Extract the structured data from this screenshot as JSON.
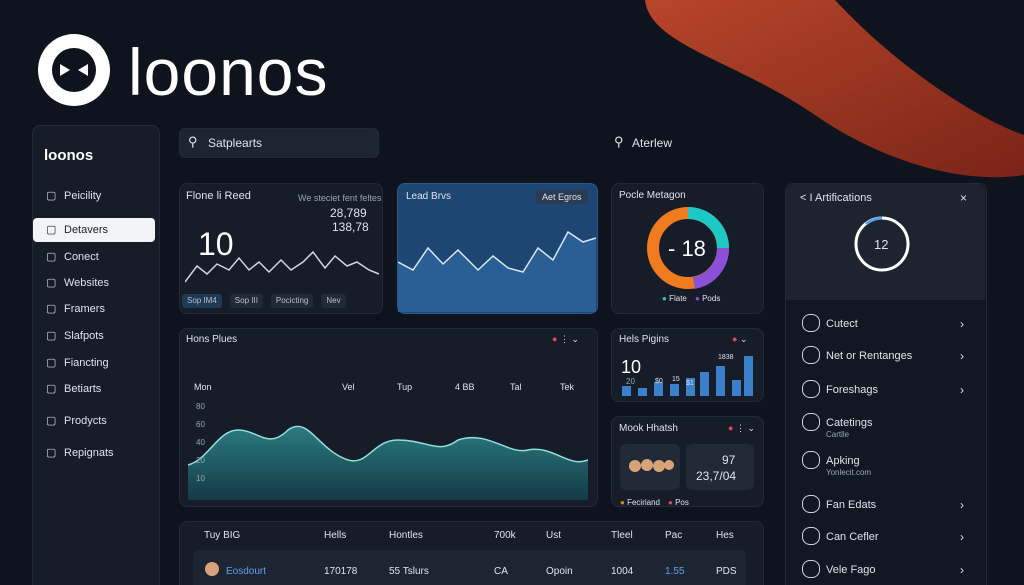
{
  "brand": {
    "logo": "loonos",
    "sidebar_logo": "loonos"
  },
  "sidebar": {
    "items": [
      "Peicility",
      "Detavers",
      "Conect",
      "Websites",
      "Framers",
      "Slafpots",
      "Fiancting",
      "Betiarts",
      "Prodycts",
      "Repignats"
    ]
  },
  "search": {
    "placeholder": "Satplearts",
    "overview": "Aterlew"
  },
  "card_reed": {
    "title": "Flone li Reed",
    "note": "We steciet fent feltes",
    "stat_a": "28,789",
    "stat_b": "138,78",
    "big": "10",
    "tabs": [
      "Sop IM4",
      "Sop III",
      "Pocicting",
      "Nev"
    ]
  },
  "card_lead": {
    "title": "Lead Brvs",
    "button": "Aet Egros"
  },
  "card_metagon": {
    "title": "Pocle Metagon",
    "center": "- 18",
    "legend": [
      "Flate",
      "Pods"
    ]
  },
  "notifications": {
    "title": "< I Artifications",
    "count": "12",
    "items": [
      {
        "label": "Cutect"
      },
      {
        "label": "Net or Rentanges"
      },
      {
        "label": "Foreshags"
      },
      {
        "label": "Catetings",
        "sub": "Cartlle"
      },
      {
        "label": "Apking",
        "sub": "Yonlecit.com"
      },
      {
        "label": "Fan Edats"
      },
      {
        "label": "Can Cefler"
      },
      {
        "label": "Vele Fago"
      }
    ]
  },
  "card_plues": {
    "title": "Hons Plues",
    "columns": [
      "Mon",
      "Vel",
      "Tup",
      "4 BB",
      "Tal",
      "Tek"
    ],
    "yticks": [
      "80",
      "60",
      "40",
      "20",
      "10"
    ]
  },
  "card_pigins": {
    "title": "Hels Pigins",
    "big": "10",
    "sub": "20",
    "labels": [
      "$0",
      "15",
      "$1",
      "1838"
    ]
  },
  "card_hhatsh": {
    "title": "Mook Hhatsh",
    "value_a": "97",
    "value_b": "23,7/04",
    "legend": [
      "Feciriand",
      "Pos"
    ]
  },
  "table": {
    "header": [
      "Tuy BIG",
      "Hells",
      "Hontles",
      "700k",
      "Ust",
      "Tleel",
      "Pac",
      "Hes"
    ],
    "rows": [
      [
        "Eosdourt",
        "170178",
        "55 Tslurs",
        "CA",
        "Opoin",
        "1004",
        "1.55",
        "PDS"
      ]
    ]
  }
}
